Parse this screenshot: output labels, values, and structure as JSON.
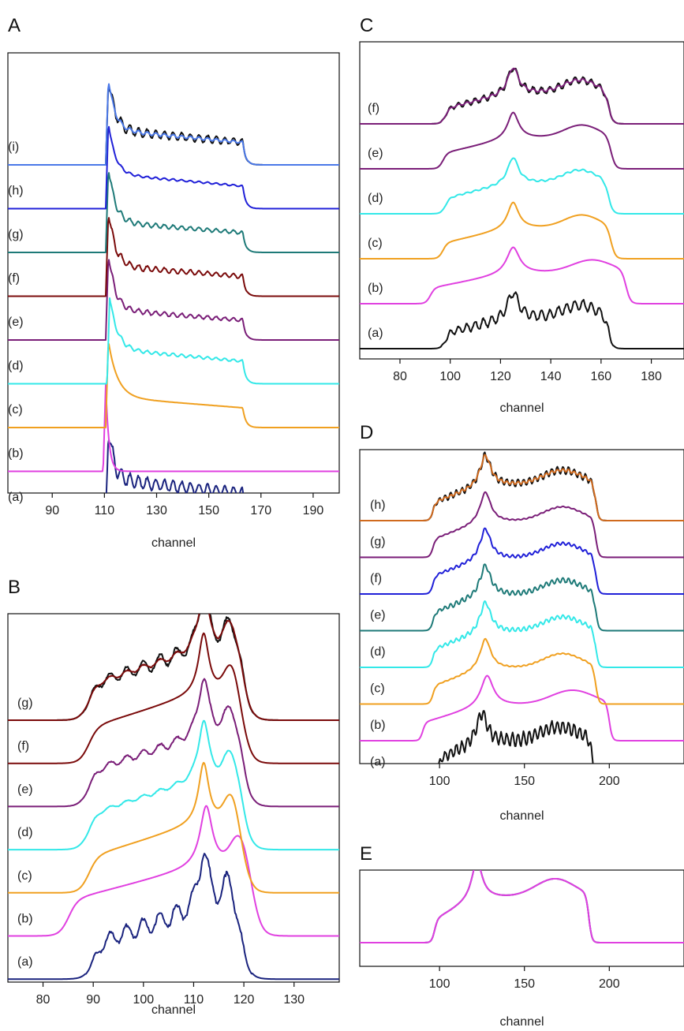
{
  "colors": {
    "black": "#111111",
    "navy": "#1a237e",
    "magenta": "#e040e0",
    "orange": "#f0a020",
    "cyan": "#33e8e8",
    "purple": "#7a1e78",
    "maroon": "#7a0a0a",
    "teal": "#1e7a78",
    "blue": "#2020d8",
    "sky": "#4a78e8",
    "brown": "#d06a1e"
  },
  "chart_data": [
    {
      "panel": "A",
      "type": "line",
      "xlabel": "channel",
      "xticks": [
        90,
        110,
        130,
        150,
        170,
        190
      ],
      "xlim": [
        73,
        200
      ],
      "series": [
        {
          "label": "(a)",
          "color": "navy",
          "onset": 111.5,
          "end": 163,
          "peakWidth": 0.8,
          "plateau": 0.4,
          "noise": 0.12
        },
        {
          "label": "(b)",
          "color": "magenta",
          "onset": 110.5,
          "end": 118,
          "peakWidth": 0.5,
          "plateau": 0.0,
          "noise": 0
        },
        {
          "label": "(c)",
          "color": "orange",
          "onset": 111.5,
          "end": 163,
          "peakWidth": 1.2,
          "plateau": 0.35,
          "noise": 0
        },
        {
          "label": "(d)",
          "color": "cyan",
          "onset": 112,
          "end": 163,
          "peakWidth": 1.0,
          "plateau": 0.4,
          "noise": 0.03
        },
        {
          "label": "(e)",
          "color": "purple",
          "onset": 111.5,
          "end": 163,
          "peakWidth": 0.9,
          "plateau": 0.35,
          "noise": 0.05
        },
        {
          "label": "(f)",
          "color": "maroon",
          "onset": 111.5,
          "end": 163,
          "peakWidth": 0.9,
          "plateau": 0.35,
          "noise": 0.06
        },
        {
          "label": "(g)",
          "color": "teal",
          "onset": 111.5,
          "end": 163,
          "peakWidth": 0.9,
          "plateau": 0.35,
          "noise": 0.05
        },
        {
          "label": "(h)",
          "color": "blue",
          "onset": 111.5,
          "end": 163,
          "peakWidth": 0.9,
          "plateau": 0.4,
          "noise": 0.02
        },
        {
          "label": "(i)",
          "color": "sky",
          "onset": 111.5,
          "end": 163,
          "peakWidth": 0.9,
          "plateau": 0.4,
          "noise": 0.08,
          "overlay": "black"
        }
      ]
    },
    {
      "panel": "B",
      "type": "line",
      "xlabel": "channel",
      "xticks": [
        80,
        90,
        100,
        110,
        120,
        130
      ],
      "xlim": [
        73,
        139
      ],
      "series": [
        {
          "label": "(a)",
          "color": "navy",
          "start": 90,
          "peak": 112,
          "end": 119.5,
          "noise": 0.1
        },
        {
          "label": "(b)",
          "color": "magenta",
          "start": 85,
          "peak": 112.5,
          "end": 122,
          "noise": 0
        },
        {
          "label": "(c)",
          "color": "orange",
          "start": 89,
          "peak": 112,
          "end": 120,
          "noise": 0
        },
        {
          "label": "(d)",
          "color": "cyan",
          "start": 89,
          "peak": 112,
          "end": 120,
          "noise": 0.02
        },
        {
          "label": "(e)",
          "color": "purple",
          "start": 89,
          "peak": 112,
          "end": 120,
          "noise": 0.04
        },
        {
          "label": "(f)",
          "color": "maroon",
          "start": 89,
          "peak": 112,
          "end": 120,
          "noise": 0
        },
        {
          "label": "(g)",
          "color": "maroon",
          "start": 89,
          "peak": 112,
          "end": 120,
          "noise": 0.07,
          "overlay": "black"
        }
      ]
    },
    {
      "panel": "C",
      "type": "line",
      "xlabel": "channel",
      "xticks": [
        80,
        100,
        120,
        140,
        160,
        180
      ],
      "xlim": [
        64,
        193
      ],
      "series": [
        {
          "label": "(a)",
          "color": "black",
          "start": 98,
          "peak": 125,
          "end": 163,
          "noise": 0.12
        },
        {
          "label": "(b)",
          "color": "magenta",
          "start": 92,
          "peak": 125,
          "end": 170,
          "noise": 0
        },
        {
          "label": "(c)",
          "color": "orange",
          "start": 97,
          "peak": 125,
          "end": 164,
          "noise": 0
        },
        {
          "label": "(d)",
          "color": "cyan",
          "start": 98,
          "peak": 125,
          "end": 163,
          "noise": 0.02
        },
        {
          "label": "(e)",
          "color": "purple",
          "start": 97,
          "peak": 125,
          "end": 164,
          "noise": 0
        },
        {
          "label": "(f)",
          "color": "purple",
          "start": 98,
          "peak": 125,
          "end": 163,
          "noise": 0.08,
          "overlay": "black"
        }
      ]
    },
    {
      "panel": "D",
      "type": "line",
      "xlabel": "channel",
      "xticks": [
        100,
        150,
        200
      ],
      "xlim": [
        53,
        244
      ],
      "series": [
        {
          "label": "(a)",
          "color": "black",
          "start": 99,
          "peak": 125,
          "end": 190,
          "noise": 0.13
        },
        {
          "label": "(b)",
          "color": "magenta",
          "start": 90,
          "peak": 128,
          "end": 200,
          "noise": 0
        },
        {
          "label": "(c)",
          "color": "orange",
          "start": 96,
          "peak": 127,
          "end": 192,
          "noise": 0.01
        },
        {
          "label": "(d)",
          "color": "cyan",
          "start": 96,
          "peak": 127,
          "end": 192,
          "noise": 0.04
        },
        {
          "label": "(e)",
          "color": "teal",
          "start": 96,
          "peak": 127,
          "end": 192,
          "noise": 0.05
        },
        {
          "label": "(f)",
          "color": "blue",
          "start": 96,
          "peak": 127,
          "end": 192,
          "noise": 0.03
        },
        {
          "label": "(g)",
          "color": "purple",
          "start": 96,
          "peak": 127,
          "end": 192,
          "noise": 0.01
        },
        {
          "label": "(h)",
          "color": "brown",
          "start": 96,
          "peak": 127,
          "end": 192,
          "noise": 0.07,
          "overlay": "black"
        }
      ]
    },
    {
      "panel": "E",
      "type": "line",
      "xlabel": "channel",
      "xticks": [
        100,
        150,
        200
      ],
      "xlim": [
        53,
        244
      ],
      "series": [
        {
          "label": "",
          "color": "navy",
          "start": 97,
          "peak": 122,
          "end": 188,
          "noise": 0
        },
        {
          "label": "",
          "color": "magenta",
          "start": 97,
          "peak": 122,
          "end": 188,
          "noise": 0
        }
      ]
    }
  ]
}
